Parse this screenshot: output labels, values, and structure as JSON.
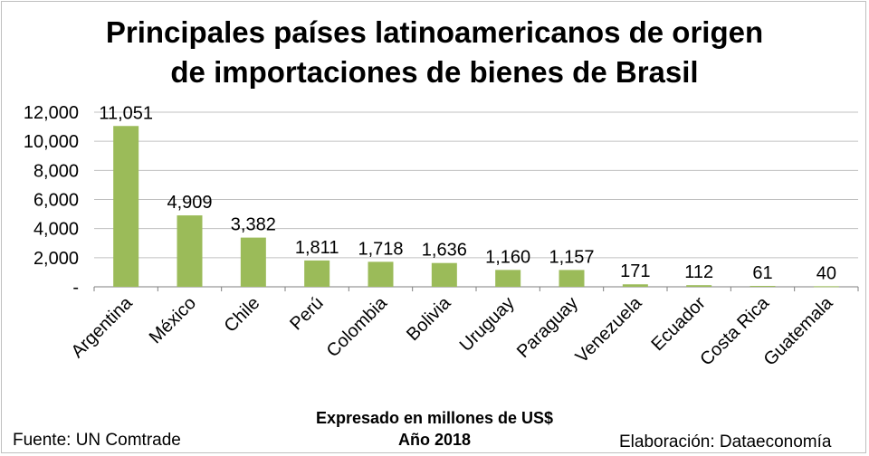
{
  "title_line1": "Principales países latinoamericanos de origen",
  "title_line2": "de importaciones de bienes de Brasil",
  "subtitle_line1": "Expresado en millones de US$",
  "subtitle_line2": "Año 2018",
  "source": "Fuente: UN Comtrade",
  "credit": "Elaboración: Dataeconomía",
  "colors": {
    "bar": "#9bbb59",
    "grid": "#c0c0c0",
    "axis": "#7f7f7f"
  },
  "chart_data": {
    "type": "bar",
    "categories": [
      "Argentina",
      "México",
      "Chile",
      "Perú",
      "Colombia",
      "Bolivia",
      "Uruguay",
      "Paraguay",
      "Venezuela",
      "Ecuador",
      "Costa Rica",
      "Guatemala"
    ],
    "values": [
      11051,
      4909,
      3382,
      1811,
      1718,
      1636,
      1160,
      1157,
      171,
      112,
      61,
      40
    ],
    "data_labels": [
      "11,051",
      "4,909",
      "3,382",
      "1,811",
      "1,718",
      "1,636",
      "1,160",
      "1,157",
      "171",
      "112",
      "61",
      "40"
    ],
    "y_ticks": [
      0,
      2000,
      4000,
      6000,
      8000,
      10000,
      12000
    ],
    "y_tick_labels": [
      "-",
      "2,000",
      "4,000",
      "6,000",
      "8,000",
      "10,000",
      "12,000"
    ],
    "ylim": [
      0,
      12000
    ],
    "grid": true,
    "legend": "none"
  }
}
